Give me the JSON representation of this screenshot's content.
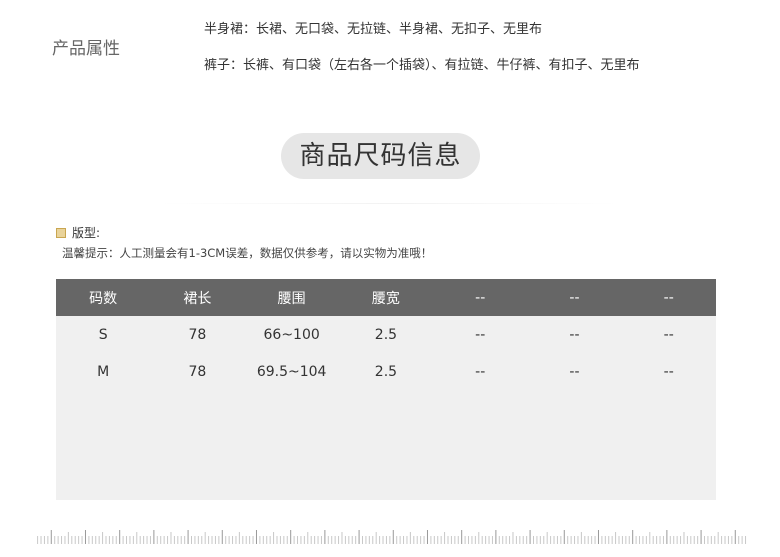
{
  "attributes": {
    "label": "产品属性",
    "lines": [
      "半身裙：长裙、无口袋、无拉链、半身裙、无扣子、无里布",
      "裤子：长裤、有口袋（左右各一个插袋）、有拉链、牛仔裤、有扣子、无里布"
    ]
  },
  "size_title": "商品尺码信息",
  "fit": {
    "icon": "fit-icon",
    "label": "版型:"
  },
  "tip": "温馨提示：人工测量会有1-3CM误差，数据仅供参考，请以实物为准哦！",
  "table": {
    "headers": [
      "码数",
      "裙长",
      "腰围",
      "腰宽",
      "--",
      "--",
      "--"
    ],
    "rows": [
      [
        "S",
        "78",
        "66~100",
        "2.5",
        "--",
        "--",
        "--"
      ],
      [
        "M",
        "78",
        "69.5~104",
        "2.5",
        "--",
        "--",
        "--"
      ]
    ],
    "header_color": "#666666"
  }
}
